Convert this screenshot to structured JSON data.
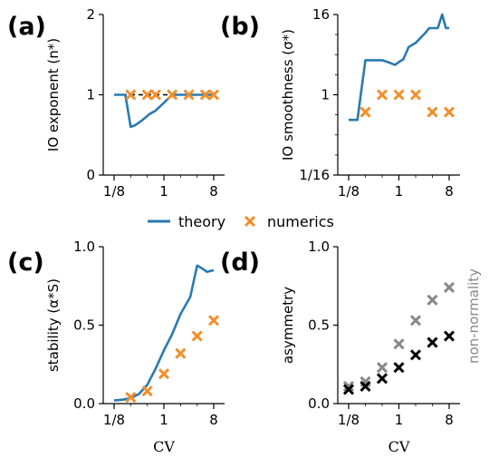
{
  "colors": {
    "theory": "#2a7ab0",
    "numerics": "#f28e2b",
    "asym_black": "#000000",
    "asym_gray": "#888888"
  },
  "legend": {
    "theory": "theory",
    "numerics": "numerics"
  },
  "chart_data": [
    {
      "letter": "(a)",
      "type": "line",
      "scale": "log2x-lineary",
      "ylabel": "IO exponent (n*)",
      "xlabel": "",
      "xlim": [
        0.11,
        10
      ],
      "ylim": [
        0,
        2
      ],
      "xticks": [
        0.125,
        1,
        8
      ],
      "xticklabels": [
        "1/8",
        "1",
        "8"
      ],
      "yticks": [
        0,
        1,
        2
      ],
      "yticklabels": [
        "0",
        "1",
        "2"
      ],
      "reference": {
        "y": 1,
        "x": [
          0.125,
          8
        ]
      },
      "theory": {
        "x": [
          0.125,
          0.2,
          0.25,
          0.3,
          0.4,
          0.55,
          0.7,
          1.0,
          1.4,
          2,
          3,
          4,
          6,
          8
        ],
        "y": [
          1.0,
          1.0,
          0.6,
          0.62,
          0.68,
          0.76,
          0.8,
          0.9,
          1.0,
          1.0,
          1.0,
          1.0,
          1.0,
          1.0
        ]
      },
      "numerics": {
        "x": [
          0.25,
          0.5,
          0.71,
          1.41,
          2.83,
          5.66,
          8
        ],
        "y": [
          1.0,
          1.0,
          1.0,
          1.0,
          1.0,
          1.0,
          1.0
        ]
      }
    },
    {
      "letter": "(b)",
      "type": "line",
      "scale": "log2x-log2y",
      "ylabel": "IO smoothness (σ*)",
      "xlabel": "",
      "xlim": [
        0.11,
        10
      ],
      "ylim": [
        0.0625,
        16
      ],
      "xticks": [
        0.125,
        1,
        8
      ],
      "xticklabels": [
        "1/8",
        "1",
        "8"
      ],
      "yticks": [
        0.0625,
        1,
        16
      ],
      "yticklabels": [
        "1/16",
        "1",
        "16"
      ],
      "theory": {
        "x": [
          0.125,
          0.18,
          0.25,
          0.35,
          0.5,
          0.7,
          0.85,
          1.0,
          1.2,
          1.5,
          2,
          3,
          3.5,
          4,
          5,
          6,
          7,
          8
        ],
        "y": [
          0.42,
          0.42,
          3.3,
          3.3,
          3.3,
          3.0,
          2.8,
          3.1,
          3.4,
          5.2,
          6.0,
          8.5,
          10.0,
          10.0,
          10.0,
          16.0,
          10.0,
          10.0
        ]
      },
      "numerics": {
        "x": [
          0.25,
          0.5,
          1.0,
          2.0,
          4.0,
          8.0
        ],
        "y": [
          0.55,
          1.0,
          1.0,
          1.0,
          0.55,
          0.55
        ]
      }
    },
    {
      "letter": "(c)",
      "type": "line",
      "scale": "log2x-lineary",
      "ylabel": "stability (α*S)",
      "xlabel": "CV",
      "xlim": [
        0.11,
        10
      ],
      "ylim": [
        0,
        1
      ],
      "xticks": [
        0.125,
        1,
        8
      ],
      "xticklabels": [
        "1/8",
        "1",
        "8"
      ],
      "yticks": [
        0,
        0.5,
        1
      ],
      "yticklabels": [
        "0.0",
        "0.5",
        "1.0"
      ],
      "theory": {
        "x": [
          0.125,
          0.18,
          0.25,
          0.35,
          0.5,
          0.7,
          1.0,
          1.4,
          2,
          3,
          4,
          5,
          6,
          8
        ],
        "y": [
          0.02,
          0.025,
          0.035,
          0.06,
          0.12,
          0.22,
          0.34,
          0.44,
          0.57,
          0.68,
          0.88,
          0.86,
          0.84,
          0.85
        ]
      },
      "numerics": {
        "x": [
          0.25,
          0.5,
          1.0,
          2.0,
          4.0,
          8.0
        ],
        "y": [
          0.04,
          0.08,
          0.19,
          0.32,
          0.43,
          0.53
        ]
      }
    },
    {
      "letter": "(d)",
      "type": "scatter",
      "scale": "log2x-lineary",
      "ylabel": "asymmetry",
      "side_label": "non-normality",
      "xlabel": "CV",
      "xlim": [
        0.11,
        10
      ],
      "ylim": [
        0,
        1
      ],
      "xticks": [
        0.125,
        1,
        8
      ],
      "xticklabels": [
        "1/8",
        "1",
        "8"
      ],
      "yticks": [
        0,
        0.5,
        1
      ],
      "yticklabels": [
        "0.0",
        "0.5",
        "1.0"
      ],
      "asymmetry": {
        "x": [
          0.125,
          0.25,
          0.5,
          1.0,
          2.0,
          4.0,
          8.0
        ],
        "y": [
          0.09,
          0.11,
          0.16,
          0.23,
          0.31,
          0.39,
          0.43
        ]
      },
      "nonnormality": {
        "x": [
          0.125,
          0.25,
          0.5,
          1.0,
          2.0,
          4.0,
          8.0
        ],
        "y": [
          0.11,
          0.14,
          0.23,
          0.38,
          0.53,
          0.66,
          0.74
        ]
      }
    }
  ]
}
